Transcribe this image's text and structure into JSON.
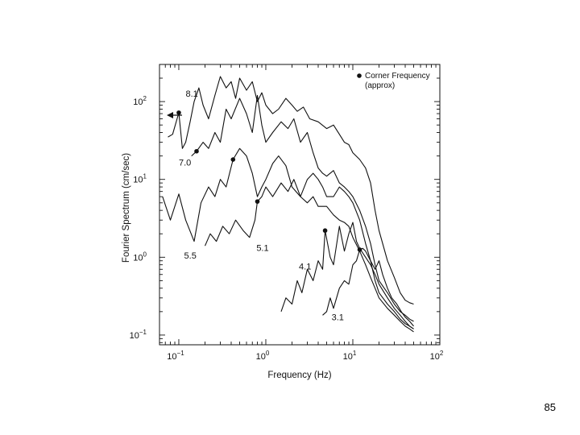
{
  "chart_data": {
    "type": "line",
    "xlabel": "Frequency (Hz)",
    "ylabel": "Fourier Spectrum (cm/sec)",
    "x_scale": "log",
    "y_scale": "log",
    "xlim": [
      0.06,
      100
    ],
    "ylim": [
      0.075,
      300
    ],
    "x_ticks": [
      {
        "value": 0.1,
        "label": "10",
        "exp": "−1"
      },
      {
        "value": 1,
        "label": "10",
        "exp": "0"
      },
      {
        "value": 10,
        "label": "10",
        "exp": "1"
      },
      {
        "value": 100,
        "label": "10",
        "exp": "2"
      }
    ],
    "y_ticks": [
      {
        "value": 0.1,
        "label": "10",
        "exp": "−1"
      },
      {
        "value": 1,
        "label": "10",
        "exp": "0"
      },
      {
        "value": 10,
        "label": "10",
        "exp": "1"
      },
      {
        "value": 100,
        "label": "10",
        "exp": "2"
      }
    ],
    "legend": {
      "label": "Corner Frequency",
      "label2": "(approx)",
      "position": "top-right"
    },
    "series": [
      {
        "name": "8.1",
        "label_at": [
          0.12,
          115
        ],
        "corner": {
          "x": 0.1,
          "y": 72
        },
        "x": [
          0.075,
          0.085,
          0.1,
          0.11,
          0.12,
          0.135,
          0.15,
          0.17,
          0.19,
          0.22,
          0.26,
          0.3,
          0.35,
          0.4,
          0.45,
          0.5,
          0.6,
          0.7,
          0.8,
          0.9,
          1.0,
          1.2,
          1.4,
          1.7,
          2.0,
          2.3,
          2.7,
          3.2,
          4.0,
          5.0,
          6.0,
          7.0,
          8.0,
          9.0,
          10,
          12,
          14,
          16,
          18,
          20,
          25,
          30,
          35,
          40,
          45,
          50
        ],
        "y": [
          35,
          38,
          72,
          25,
          30,
          55,
          100,
          150,
          90,
          60,
          120,
          210,
          150,
          180,
          110,
          200,
          140,
          180,
          100,
          130,
          90,
          70,
          80,
          110,
          90,
          75,
          85,
          60,
          55,
          45,
          50,
          38,
          30,
          28,
          22,
          18,
          14,
          9,
          4,
          2.2,
          0.9,
          0.55,
          0.35,
          0.28,
          0.26,
          0.25
        ]
      },
      {
        "name": "7.0",
        "label_at": [
          0.1,
          15
        ],
        "corner": {
          "x": 0.16,
          "y": 23
        },
        "x": [
          0.14,
          0.16,
          0.19,
          0.22,
          0.26,
          0.3,
          0.35,
          0.4,
          0.5,
          0.6,
          0.7,
          0.8,
          0.9,
          1.0,
          1.2,
          1.5,
          1.8,
          2.1,
          2.5,
          3.0,
          3.5,
          4.0,
          4.5,
          5.0,
          6.0,
          7.0,
          8.0,
          9.0,
          10,
          12,
          14,
          16,
          18,
          20,
          25,
          30,
          35,
          40,
          45,
          50
        ],
        "y": [
          20,
          23,
          30,
          25,
          40,
          30,
          80,
          60,
          110,
          70,
          40,
          120,
          50,
          30,
          40,
          55,
          45,
          60,
          30,
          40,
          22,
          14,
          12,
          11,
          13,
          9,
          8,
          7,
          6,
          4,
          2.5,
          1.5,
          0.8,
          0.5,
          0.35,
          0.25,
          0.2,
          0.18,
          0.16,
          0.15
        ]
      },
      {
        "name": "5.5",
        "label_at": [
          0.115,
          0.96
        ],
        "corner": {
          "x": 0.42,
          "y": 18
        },
        "x": [
          0.065,
          0.08,
          0.1,
          0.12,
          0.15,
          0.18,
          0.22,
          0.26,
          0.3,
          0.35,
          0.42,
          0.5,
          0.6,
          0.7,
          0.8,
          0.9,
          1.0,
          1.2,
          1.4,
          1.7,
          2.0,
          2.5,
          3.0,
          3.5,
          4.0,
          4.5,
          5.0,
          6.0,
          7.0,
          8.0,
          9.0,
          10,
          12,
          14,
          16,
          18,
          20,
          25,
          30,
          35,
          40,
          45,
          50
        ],
        "y": [
          6,
          3,
          6.5,
          3,
          1.6,
          5,
          8,
          6,
          10,
          8,
          18,
          25,
          20,
          12,
          6,
          8,
          10,
          16,
          20,
          15,
          8,
          6,
          10,
          12,
          10,
          8,
          6,
          6,
          8,
          7,
          6,
          5,
          3,
          1.5,
          0.9,
          0.5,
          0.35,
          0.25,
          0.2,
          0.16,
          0.14,
          0.13,
          0.12
        ]
      },
      {
        "name": "5.1",
        "label_at": [
          0.78,
          1.2
        ],
        "corner": {
          "x": 0.8,
          "y": 5.2
        },
        "x": [
          0.2,
          0.23,
          0.27,
          0.32,
          0.38,
          0.45,
          0.55,
          0.65,
          0.75,
          0.8,
          0.9,
          1.0,
          1.2,
          1.5,
          1.8,
          2.1,
          2.5,
          3.0,
          3.5,
          4.0,
          5.0,
          6.0,
          7.0,
          8.0,
          9.0,
          10,
          12,
          14,
          16,
          18,
          20,
          25,
          30,
          35,
          40,
          45,
          50
        ],
        "y": [
          1.4,
          2.0,
          1.6,
          2.5,
          2.0,
          3.0,
          2.2,
          1.8,
          3.0,
          5.2,
          6.0,
          8.0,
          6.0,
          9.0,
          7.0,
          10.0,
          6.0,
          5.0,
          6.0,
          4.5,
          4.5,
          3.5,
          3.0,
          2.8,
          2.5,
          1.8,
          1.2,
          0.8,
          0.55,
          0.4,
          0.3,
          0.22,
          0.18,
          0.15,
          0.13,
          0.12,
          0.11
        ]
      },
      {
        "name": "4.1",
        "label_at": [
          2.4,
          0.7
        ],
        "corner": {
          "x": 4.8,
          "y": 2.2
        },
        "x": [
          1.5,
          1.7,
          2.0,
          2.3,
          2.6,
          3.0,
          3.5,
          4.0,
          4.5,
          4.8,
          5.5,
          6.0,
          7.0,
          8.0,
          9.0,
          10,
          11,
          12,
          14,
          16,
          18,
          20,
          25,
          30,
          35,
          40,
          45,
          50
        ],
        "y": [
          0.2,
          0.3,
          0.25,
          0.5,
          0.35,
          0.7,
          0.5,
          0.9,
          0.7,
          2.2,
          1.0,
          0.8,
          2.5,
          1.2,
          2.0,
          2.8,
          1.6,
          1.3,
          1.0,
          0.8,
          0.6,
          0.45,
          0.3,
          0.22,
          0.18,
          0.15,
          0.13,
          0.12
        ]
      },
      {
        "name": "3.1",
        "label_at": [
          5.7,
          0.155
        ],
        "corner": {
          "x": 12,
          "y": 1.25
        },
        "x": [
          4.5,
          5.0,
          5.5,
          6.0,
          7.0,
          8.0,
          9.0,
          10,
          11,
          12,
          13,
          14,
          16,
          18,
          20,
          22,
          25,
          28,
          32,
          36,
          40,
          45,
          50
        ],
        "y": [
          0.18,
          0.2,
          0.3,
          0.22,
          0.4,
          0.5,
          0.45,
          0.8,
          0.9,
          1.25,
          1.3,
          1.2,
          0.9,
          0.7,
          0.9,
          0.6,
          0.4,
          0.3,
          0.25,
          0.2,
          0.17,
          0.15,
          0.13
        ]
      }
    ]
  },
  "page": {
    "number": "85"
  }
}
